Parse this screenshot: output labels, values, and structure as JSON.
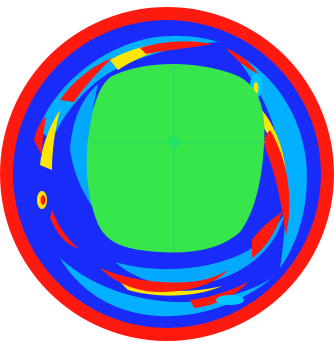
{
  "figure": {
    "shape": "circular field",
    "colormap": [
      "#1a2cff",
      "#00c8ff",
      "#36e64a",
      "#ffe600",
      "#ff1a10"
    ],
    "colors": {
      "background": "#ffffff",
      "rim": "#ff1a10",
      "field": "#1a2cff",
      "core": "#36e64a",
      "core_axes": "#22d66f",
      "core_center": "#1fe36a",
      "vortex_mid": "#00c8ff",
      "vortex_high": "#ffe600",
      "vortex_peak": "#ff1a10"
    }
  }
}
